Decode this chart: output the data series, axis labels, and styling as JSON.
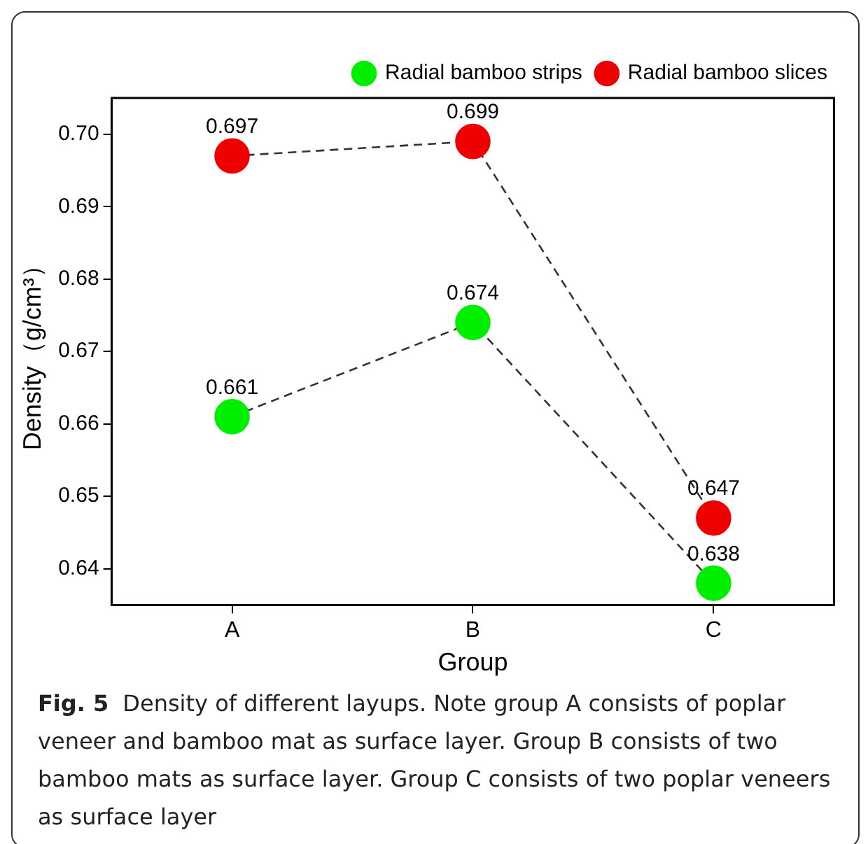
{
  "chart_data": {
    "type": "line",
    "xlabel": "Group",
    "ylabel": "Density（g/cm³）",
    "categories": [
      "A",
      "B",
      "C"
    ],
    "series": [
      {
        "name": "Radial bamboo strips",
        "color": "#00ee00",
        "values": [
          0.661,
          0.674,
          0.638
        ]
      },
      {
        "name": "Radial bamboo slices",
        "color": "#ee0000",
        "values": [
          0.697,
          0.699,
          0.647
        ]
      }
    ],
    "ylim": [
      0.635,
      0.705
    ],
    "yticks": [
      0.64,
      0.65,
      0.66,
      0.67,
      0.68,
      0.69,
      {
        "value": 0.7,
        "label": "0.70"
      }
    ],
    "grid": false,
    "legend": "top right",
    "marker": "circle",
    "line_style": "dashed",
    "data_labels": true,
    "annotations": [
      "Fig. 5",
      "Density of different layups. Note group A consists of poplar veneer and bamboo mat as surface layer. Group B consists of two bamboo mats as surface layer. Group C consists of two poplar veneers as surface layer"
    ]
  }
}
